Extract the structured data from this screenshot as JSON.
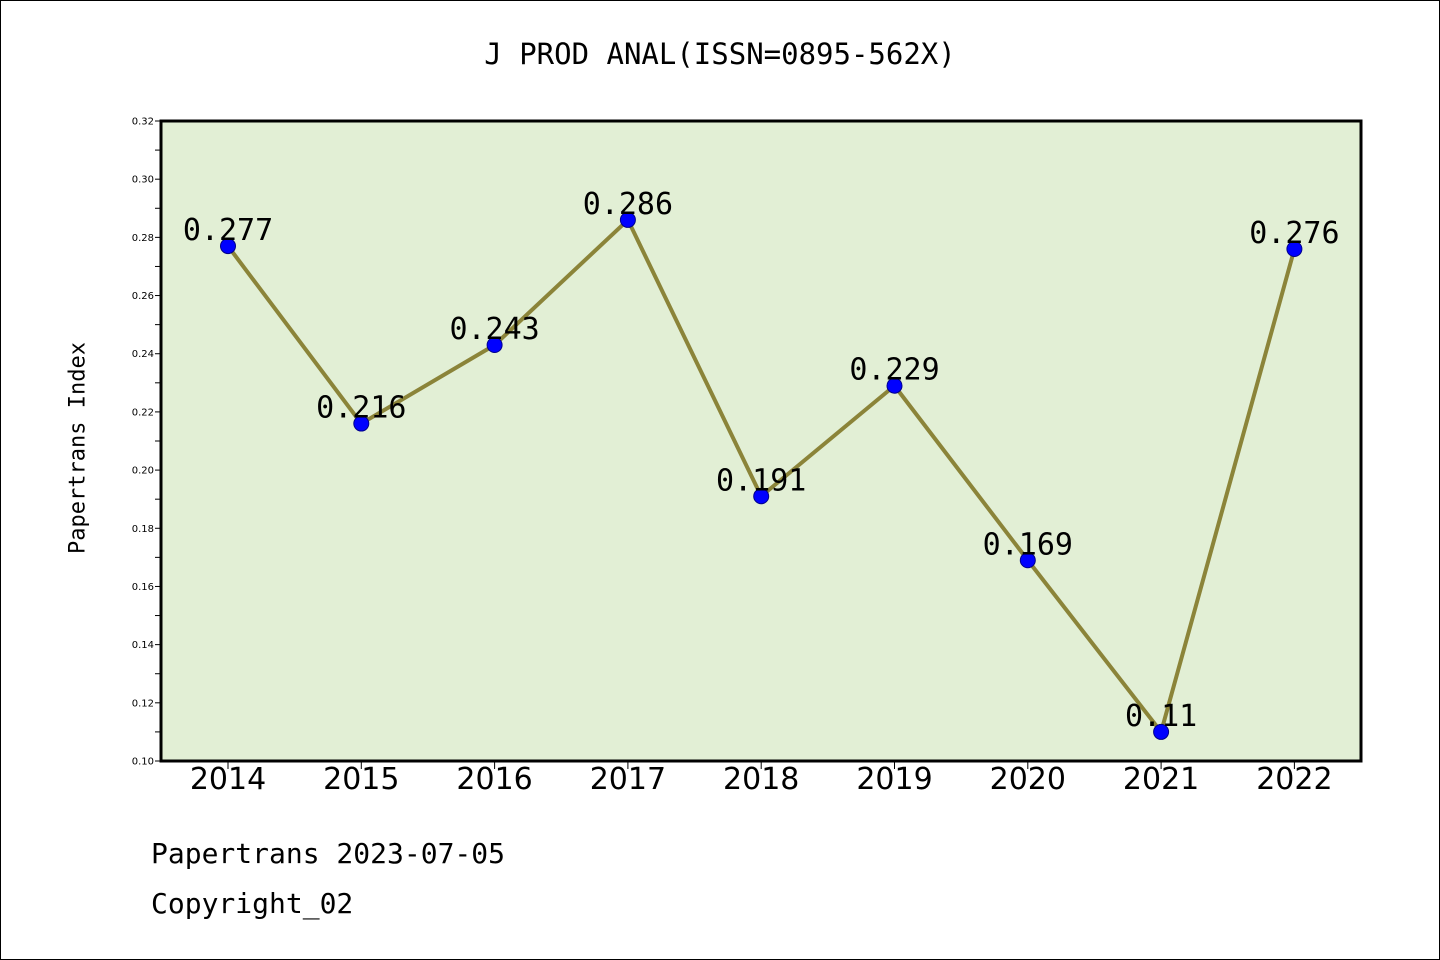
{
  "chart_data": {
    "type": "line",
    "title": "J PROD ANAL(ISSN=0895-562X)",
    "xlabel": "",
    "ylabel": "Papertrans Index",
    "categories": [
      "2014",
      "2015",
      "2016",
      "2017",
      "2018",
      "2019",
      "2020",
      "2021",
      "2022"
    ],
    "series": [
      {
        "values": [
          0.277,
          0.216,
          0.243,
          0.286,
          0.191,
          0.229,
          0.169,
          0.11,
          0.276
        ]
      }
    ],
    "data_labels": [
      "0.277",
      "0.216",
      "0.243",
      "0.286",
      "0.191",
      "0.229",
      "0.169",
      "0.11",
      "0.276"
    ],
    "ylim": [
      0.1,
      0.32
    ],
    "yticks": [
      "0.10",
      "0.12",
      "0.14",
      "0.16",
      "0.18",
      "0.20",
      "0.22",
      "0.24",
      "0.26",
      "0.28",
      "0.30",
      "0.32"
    ],
    "grid": false,
    "legend": "none",
    "colors": {
      "plot_background": "#e2efd5",
      "line": "#8b8439",
      "marker": "#0000ff",
      "marker_edge": "#00008b"
    }
  },
  "footer": {
    "stamp": "Papertrans 2023-07-05",
    "copyright": "Copyright_02"
  }
}
